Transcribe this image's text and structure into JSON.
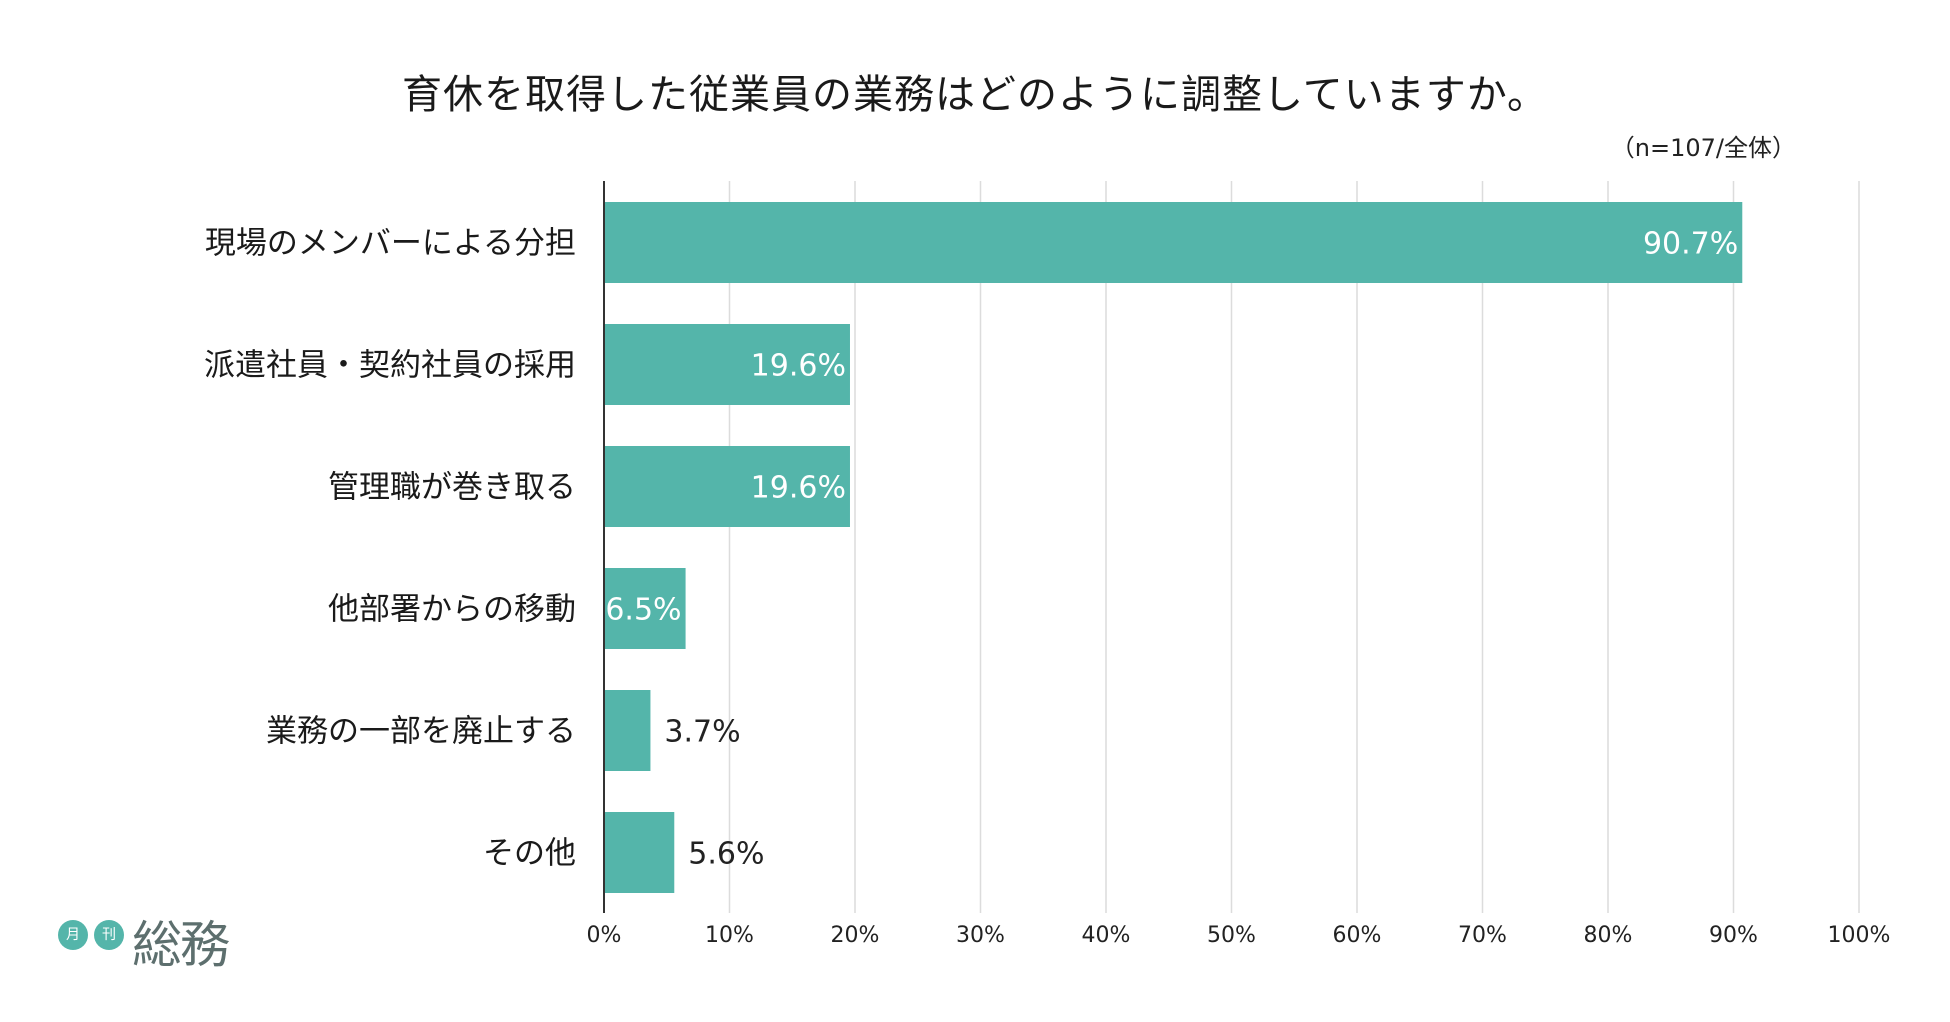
{
  "page": {
    "title": "育休を取得した従業員の業務はどのように調整していますか。",
    "note": "（n=107/全体）"
  },
  "logo": {
    "badge_1": "月",
    "badge_2": "刊",
    "brand": "総務"
  },
  "colors": {
    "bar": "#54b5aa",
    "grid": "#dcdcdc",
    "axis": "#333333",
    "label_inside": "#ffffff",
    "label_outside": "#222222"
  },
  "chart_data": {
    "type": "bar",
    "orientation": "horizontal",
    "title": "育休を取得した従業員の業務はどのように調整していますか。",
    "categories": [
      "現場のメンバーによる分担",
      "派遣社員・契約社員の採用",
      "管理職が巻き取る",
      "他部署からの移動",
      "業務の一部を廃止する",
      "その他"
    ],
    "values": [
      90.7,
      19.6,
      19.6,
      6.5,
      3.7,
      5.6
    ],
    "value_labels": [
      "90.7%",
      "19.6%",
      "19.6%",
      "6.5%",
      "3.7%",
      "5.6%"
    ],
    "label_inside": [
      true,
      true,
      true,
      true,
      false,
      false
    ],
    "xlim": [
      0,
      100
    ],
    "xticks": [
      "0%",
      "10%",
      "20%",
      "30%",
      "40%",
      "50%",
      "60%",
      "70%",
      "80%",
      "90%",
      "100%"
    ],
    "grid": true,
    "legend": "none"
  }
}
